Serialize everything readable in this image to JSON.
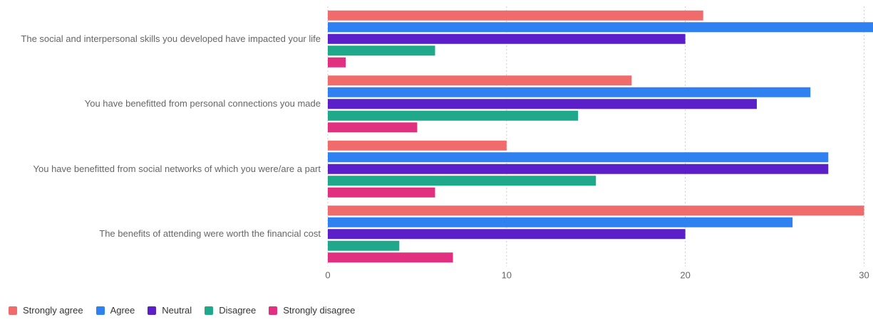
{
  "chart_data": {
    "type": "bar",
    "orientation": "horizontal",
    "categories": [
      "The social and interpersonal skills you developed have impacted your life",
      "You have benefitted from personal connections you made",
      "You have benefitted from social networks of which you were/are a part",
      "The benefits of attending were worth the financial cost"
    ],
    "series": [
      {
        "name": "Strongly agree",
        "color": "#f06b6b",
        "values": [
          21,
          17,
          10,
          30
        ]
      },
      {
        "name": "Agree",
        "color": "#2f80f0",
        "values": [
          31,
          27,
          28,
          26
        ]
      },
      {
        "name": "Neutral",
        "color": "#5b1fc9",
        "values": [
          20,
          24,
          28,
          20
        ]
      },
      {
        "name": "Disagree",
        "color": "#1fa98a",
        "values": [
          6,
          14,
          15,
          4
        ]
      },
      {
        "name": "Strongly disagree",
        "color": "#e0307f",
        "values": [
          1,
          5,
          6,
          7
        ]
      }
    ],
    "xlim": [
      0,
      30.5
    ],
    "xticks": [
      0,
      10,
      20,
      30
    ],
    "grid": true,
    "legend": "bottom-left"
  }
}
